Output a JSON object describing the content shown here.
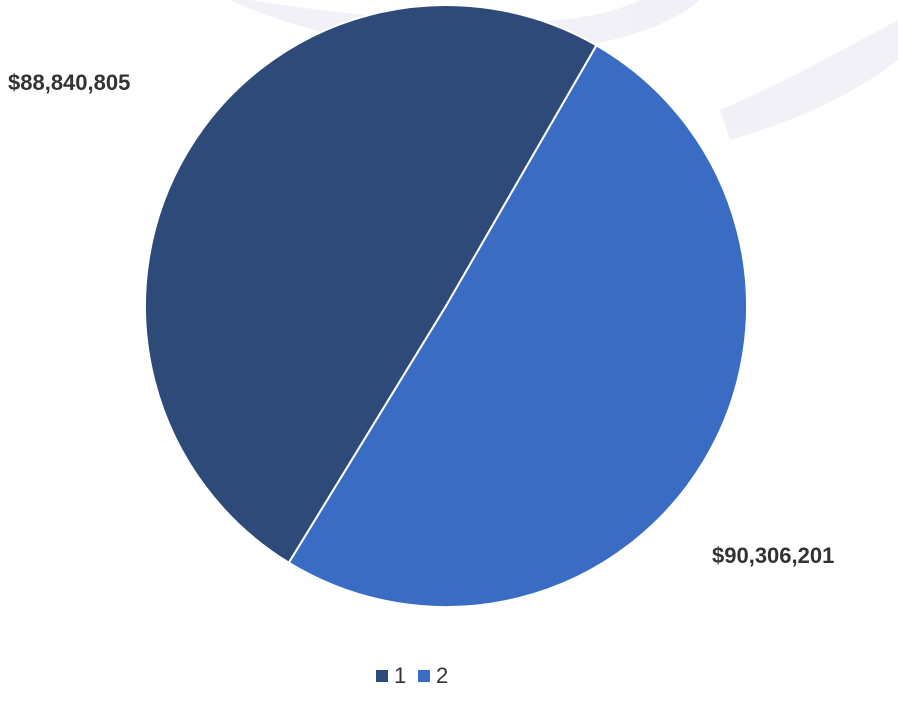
{
  "chart_data": {
    "type": "pie",
    "categories": [
      "1",
      "2"
    ],
    "values": [
      88840805,
      90306201
    ],
    "data_labels": [
      "$88,840,805",
      "$90,306,201"
    ],
    "colors": [
      "#2e4a78",
      "#3b6cc4"
    ],
    "legend": {
      "position": "bottom",
      "entries": [
        "1",
        "2"
      ]
    }
  }
}
